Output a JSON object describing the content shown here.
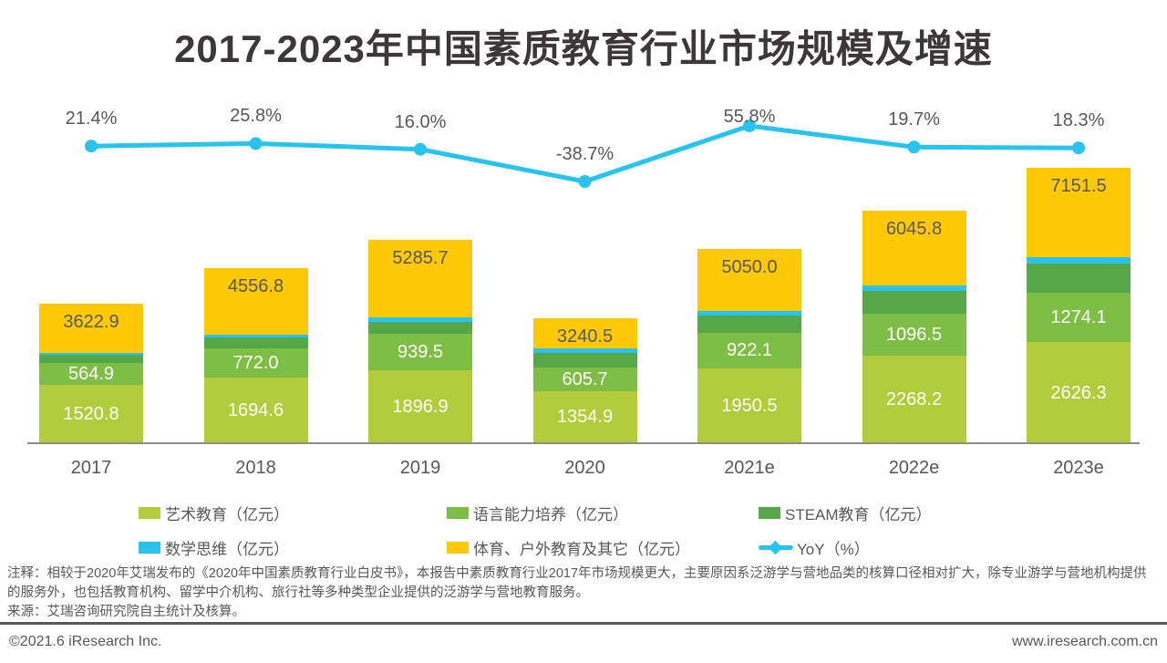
{
  "title": "2017-2023年中国素质教育行业市场规模及增速",
  "chart_data": {
    "type": "stacked-bar+line",
    "categories": [
      "2017",
      "2018",
      "2019",
      "2020",
      "2021e",
      "2022e",
      "2023e"
    ],
    "series": [
      {
        "key": "art",
        "name": "艺术教育（亿元）",
        "color": "#B2CC3B",
        "labels_shown": true,
        "values": [
          1520.8,
          1694.6,
          1896.9,
          1354.9,
          1950.5,
          2268.2,
          2626.3
        ]
      },
      {
        "key": "language",
        "name": "语言能力培养（亿元）",
        "color": "#7FBE45",
        "labels_shown": true,
        "values": [
          564.9,
          772.0,
          939.5,
          605.7,
          922.1,
          1096.5,
          1274.1
        ]
      },
      {
        "key": "steam",
        "name": "STEAM教育（亿元）",
        "color": "#55A747",
        "labels_shown": false,
        "values_estimated": true,
        "values": [
          200,
          275,
          310,
          375,
          437,
          590,
          756
        ]
      },
      {
        "key": "math",
        "name": "数学思维（亿元）",
        "color": "#28C3EE",
        "labels_shown": false,
        "values_estimated": true,
        "values": [
          60,
          70,
          115,
          115,
          118,
          142,
          165
        ]
      },
      {
        "key": "sports",
        "name": "体育、户外教育及其它（亿元）",
        "color": "#FFC905",
        "labels_shown": false,
        "values_estimated": true,
        "values": [
          1277.2,
          1745.2,
          2024.3,
          789.9,
          1622.4,
          1949.1,
          2330.1
        ]
      }
    ],
    "totals": {
      "shown_on_top_segment": true,
      "label_color": "#595757",
      "values": [
        3622.9,
        4556.8,
        5285.7,
        3240.5,
        5050.0,
        6045.8,
        7151.5
      ]
    },
    "yoy": {
      "name": "YoY（%）",
      "color": "#28C3EE",
      "values": [
        21.4,
        25.8,
        16.0,
        -38.7,
        55.8,
        19.7,
        18.3
      ],
      "labels": [
        "21.4%",
        "25.8%",
        "16.0%",
        "-38.7%",
        "55.8%",
        "19.7%",
        "18.3%"
      ],
      "label_dy": [
        0,
        0,
        0,
        0,
        20,
        0,
        0
      ]
    },
    "ylim_implied": [
      0,
      7151.5
    ],
    "grid": "off",
    "legend_position": "bottom"
  },
  "legend": {
    "rows": [
      [
        {
          "label": "艺术教育（亿元）",
          "color": "#B2CC3B",
          "glyph": "swatch"
        },
        {
          "label": "语言能力培养（亿元）",
          "color": "#7FBE45",
          "glyph": "swatch"
        },
        {
          "label": "STEAM教育（亿元）",
          "color": "#55A747",
          "glyph": "swatch"
        }
      ],
      [
        {
          "label": "数学思维（亿元）",
          "color": "#28C3EE",
          "glyph": "swatch"
        },
        {
          "label": "体育、户外教育及其它（亿元）",
          "color": "#FFC905",
          "glyph": "swatch"
        },
        {
          "label": "YoY（%）",
          "color": "#28C3EE",
          "glyph": "line"
        }
      ]
    ]
  },
  "notes": {
    "annotation": "注释：相较于2020年艾瑞发布的《2020年中国素质教育行业白皮书》，本报告中素质教育行业2017年市场规模更大，主要原因系泛游学与营地品类的核算口径相对扩大，除专业游学与营地机构提供的服务外，也包括教育机构、留学中介机构、旅行社等多种类型企业提供的泛游学与营地教育服务。",
    "source": "来源：艾瑞咨询研究院自主统计及核算。"
  },
  "footer": {
    "copyright": "©2021.6 iResearch Inc.",
    "website": "www.iresearch.com.cn"
  }
}
